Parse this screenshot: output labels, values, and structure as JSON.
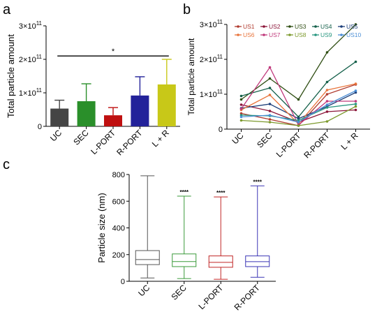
{
  "chart_data": [
    {
      "panel": "a",
      "type": "bar",
      "title": "",
      "xlabel": "",
      "ylabel": "Total particle amount",
      "ylim": [
        0,
        300000000000.0
      ],
      "y_ticks": [
        {
          "value": 0,
          "label": "0"
        },
        {
          "value": 100000000000.0,
          "label": "1×10",
          "exp": "11"
        },
        {
          "value": 200000000000.0,
          "label": "2×10",
          "exp": "11"
        },
        {
          "value": 300000000000.0,
          "label": "3×10",
          "exp": "11"
        }
      ],
      "categories": [
        "UC",
        "SEC",
        "L-PORT",
        "R-PORT",
        "L + R"
      ],
      "values": [
        53000000000.0,
        75000000000.0,
        33000000000.0,
        92000000000.0,
        125000000000.0
      ],
      "error_upper": [
        78000000000.0,
        127000000000.0,
        56000000000.0,
        148000000000.0,
        200000000000.0
      ],
      "colors": [
        "#454545",
        "#2a8f2a",
        "#bf1010",
        "#23229a",
        "#c8c818"
      ],
      "significance": {
        "label": "*",
        "from": "UC",
        "to": "L + R",
        "y": 210000000000.0
      }
    },
    {
      "panel": "b",
      "type": "line",
      "title": "",
      "xlabel": "",
      "ylabel": "Total particle amount",
      "ylim": [
        0,
        300000000000.0
      ],
      "y_ticks": [
        {
          "value": 0,
          "label": "0"
        },
        {
          "value": 100000000000.0,
          "label": "1×10",
          "exp": "11"
        },
        {
          "value": 200000000000.0,
          "label": "2×10",
          "exp": "11"
        },
        {
          "value": 300000000000.0,
          "label": "3×10",
          "exp": "11"
        }
      ],
      "categories": [
        "UC",
        "SEC",
        "L-PORT",
        "R-PORT",
        "L + R"
      ],
      "legend_position": "top",
      "series": [
        {
          "name": "US1",
          "color": "#b03a2e",
          "values": [
            45000000000.0,
            28000000000.0,
            10000000000.0,
            100000000000.0,
            128000000000.0
          ]
        },
        {
          "name": "US2",
          "color": "#8b1538",
          "values": [
            70000000000.0,
            52000000000.0,
            20000000000.0,
            50000000000.0,
            55000000000.0
          ]
        },
        {
          "name": "US3",
          "color": "#2e4d12",
          "values": [
            85000000000.0,
            145000000000.0,
            85000000000.0,
            220000000000.0,
            300000000000.0
          ]
        },
        {
          "name": "US4",
          "color": "#14604a",
          "values": [
            95000000000.0,
            118000000000.0,
            35000000000.0,
            135000000000.0,
            193000000000.0
          ]
        },
        {
          "name": "US5",
          "color": "#1d3f7a",
          "values": [
            60000000000.0,
            72000000000.0,
            30000000000.0,
            65000000000.0,
            105000000000.0
          ]
        },
        {
          "name": "US6",
          "color": "#e8743b",
          "values": [
            55000000000.0,
            98000000000.0,
            15000000000.0,
            112000000000.0,
            130000000000.0
          ]
        },
        {
          "name": "US7",
          "color": "#c0397b",
          "values": [
            58000000000.0,
            177000000000.0,
            12000000000.0,
            80000000000.0,
            80000000000.0
          ]
        },
        {
          "name": "US8",
          "color": "#7d9a2e",
          "values": [
            25000000000.0,
            20000000000.0,
            10000000000.0,
            22000000000.0,
            65000000000.0
          ]
        },
        {
          "name": "US9",
          "color": "#27967f",
          "values": [
            40000000000.0,
            38000000000.0,
            25000000000.0,
            62000000000.0,
            72000000000.0
          ]
        },
        {
          "name": "US10",
          "color": "#4c8fd6",
          "values": [
            35000000000.0,
            40000000000.0,
            20000000000.0,
            70000000000.0,
            110000000000.0
          ]
        }
      ]
    },
    {
      "panel": "c",
      "type": "box",
      "title": "",
      "xlabel": "",
      "ylabel": "Particle size (nm)",
      "ylim": [
        0,
        800
      ],
      "y_ticks": [
        0,
        200,
        400,
        600,
        800
      ],
      "categories": [
        "UC",
        "SEC",
        "L-PORT",
        "R-PORT"
      ],
      "colors": [
        "#555555",
        "#3a9a3a",
        "#c02525",
        "#3a35b5"
      ],
      "boxes": [
        {
          "min": 25,
          "q1": 125,
          "median": 163,
          "q3": 230,
          "max": 790,
          "sig": ""
        },
        {
          "min": 20,
          "q1": 110,
          "median": 148,
          "q3": 205,
          "max": 638,
          "sig": "****"
        },
        {
          "min": 15,
          "q1": 105,
          "median": 142,
          "q3": 190,
          "max": 632,
          "sig": "****"
        },
        {
          "min": 30,
          "q1": 110,
          "median": 147,
          "q3": 190,
          "max": 715,
          "sig": "****"
        }
      ]
    }
  ],
  "panel_labels": {
    "a": "a",
    "b": "b",
    "c": "c"
  }
}
